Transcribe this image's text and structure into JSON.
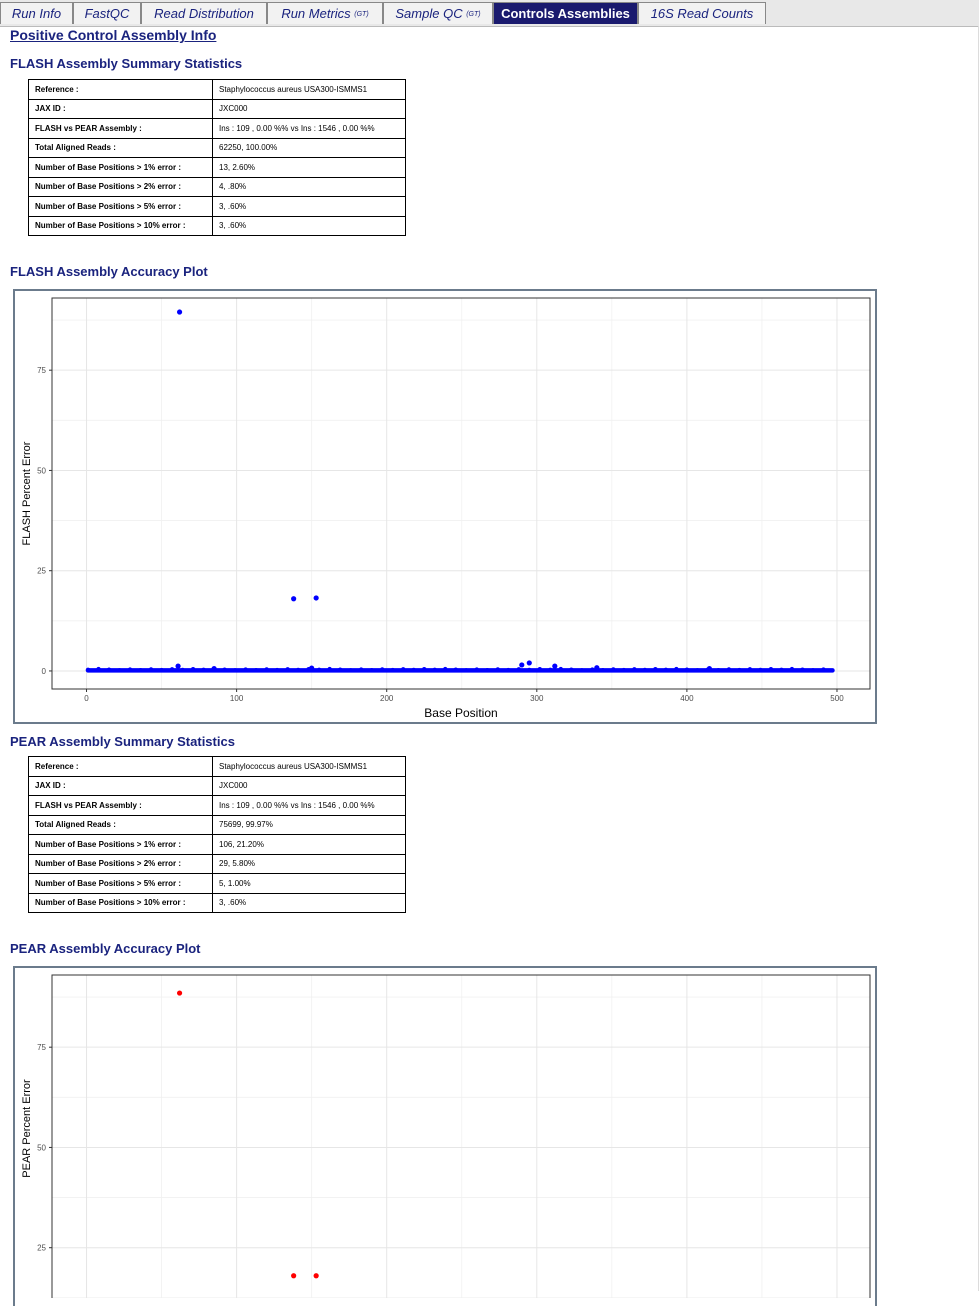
{
  "tabs": [
    {
      "label": "Run Info",
      "sup": "",
      "active": false
    },
    {
      "label": "FastQC",
      "sup": "",
      "active": false
    },
    {
      "label": "Read Distribution",
      "sup": "",
      "active": false
    },
    {
      "label": "Run Metrics ",
      "sup": "(GT)",
      "active": false
    },
    {
      "label": "Sample QC ",
      "sup": "(GT)",
      "active": false
    },
    {
      "label": "Controls Assemblies",
      "sup": "",
      "active": true
    },
    {
      "label": "16S Read Counts",
      "sup": "",
      "active": false
    }
  ],
  "page_title": "Positive Control Assembly Info",
  "flash": {
    "summary_title": "FLASH Assembly Summary Statistics",
    "rows": [
      {
        "key": "Reference :",
        "value": "Staphylococcus aureus USA300-ISMMS1"
      },
      {
        "key": "JAX ID :",
        "value": "JXC000"
      },
      {
        "key": "FLASH vs PEAR Assembly :",
        "value": "Ins : 109 , 0.00 %% vs Ins : 1546 , 0.00 %%"
      },
      {
        "key": "Total Aligned Reads :",
        "value": "62250, 100.00%"
      },
      {
        "key": "Number of Base Positions > 1% error :",
        "value": "13, 2.60%"
      },
      {
        "key": "Number of Base Positions > 2% error :",
        "value": "4, .80%"
      },
      {
        "key": "Number of Base Positions > 5% error :",
        "value": "3, .60%"
      },
      {
        "key": "Number of Base Positions > 10% error :",
        "value": "3, .60%"
      }
    ],
    "plot_title": "FLASH Assembly Accuracy Plot"
  },
  "pear": {
    "summary_title": "PEAR Assembly Summary Statistics",
    "rows": [
      {
        "key": "Reference :",
        "value": "Staphylococcus aureus USA300-ISMMS1"
      },
      {
        "key": "JAX ID :",
        "value": "JXC000"
      },
      {
        "key": "FLASH vs PEAR Assembly :",
        "value": "Ins : 109 , 0.00 %% vs Ins : 1546 , 0.00 %%"
      },
      {
        "key": "Total Aligned Reads :",
        "value": "75699, 99.97%"
      },
      {
        "key": "Number of Base Positions > 1% error :",
        "value": "106, 21.20%"
      },
      {
        "key": "Number of Base Positions > 2% error :",
        "value": "29, 5.80%"
      },
      {
        "key": "Number of Base Positions > 5% error :",
        "value": "5, 1.00%"
      },
      {
        "key": "Number of Base Positions > 10% error :",
        "value": "3, .60%"
      }
    ],
    "plot_title": "PEAR Assembly Accuracy Plot"
  },
  "chart_data": [
    {
      "type": "scatter",
      "xlabel": "Base Position",
      "ylabel": "FLASH Percent Error",
      "xlim": [
        -23,
        522
      ],
      "ylim": [
        -4.5,
        93
      ],
      "xticks": [
        0,
        100,
        200,
        300,
        400,
        500
      ],
      "yticks": [
        0,
        25,
        50,
        75
      ],
      "grid": true,
      "color": "#0000ff",
      "points": [
        [
          62,
          89.5
        ],
        [
          138,
          18
        ],
        [
          153,
          18.2
        ],
        [
          61,
          1.2
        ],
        [
          295,
          2.0
        ],
        [
          290,
          1.5
        ],
        [
          312,
          1.2
        ],
        [
          85,
          0.6
        ],
        [
          150,
          0.7
        ],
        [
          340,
          0.8
        ],
        [
          415,
          0.6
        ]
      ],
      "baseline": {
        "x_start": 1,
        "x_end": 497,
        "y": 0.15
      }
    },
    {
      "type": "scatter",
      "xlabel": "",
      "ylabel": "PEAR Percent Error",
      "xlim": [
        -23,
        522
      ],
      "ylim": [
        -4.5,
        93
      ],
      "xticks": [
        0,
        100,
        200,
        300,
        400,
        500
      ],
      "yticks": [
        25,
        50,
        75
      ],
      "grid": true,
      "color": "#ff0000",
      "points": [
        [
          62,
          88.5
        ],
        [
          138,
          18
        ],
        [
          153,
          18
        ]
      ]
    }
  ]
}
